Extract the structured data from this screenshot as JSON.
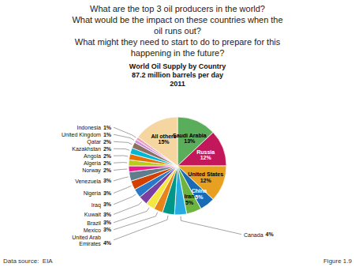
{
  "chart_data": {
    "type": "pie",
    "title": "World Oil Supply by Country\n87.2 million barrels per day\n2011",
    "annotations": [
      "What are the top 3 oil producers in the world?\nWhat would be the impact on these countries when the\noil runs out?\nWhat might they need to start to do to prepare for this\nhappening in the future?",
      "Data source:  EIA",
      "Figure 1.9"
    ],
    "categories": [
      "Saudi Arabia",
      "Russia",
      "United States",
      "China",
      "Iran",
      "Canada",
      "United Arab\nEmirates",
      "Mexico",
      "Brazil",
      "Kuwait",
      "Iraq",
      "Nigeria",
      "Venezuela",
      "Norway",
      "Algeria",
      "Angola",
      "Kazakhstan",
      "Qatar",
      "United Kingdom",
      "Indonesia",
      "All others"
    ],
    "values": [
      13,
      12,
      12,
      5,
      5,
      4,
      4,
      3,
      3,
      3,
      3,
      3,
      3,
      2,
      2,
      2,
      2,
      2,
      1,
      1,
      15
    ],
    "value_labels": [
      "13%",
      "12%",
      "12%",
      "5%",
      "5%",
      "4%",
      "4%",
      "3%",
      "3%",
      "3%",
      "3%",
      "3%",
      "3%",
      "2%",
      "2%",
      "2%",
      "2%",
      "2%",
      "1%",
      "1%",
      "15%"
    ],
    "colors": [
      "#5aad5a",
      "#c2185b",
      "#e8a020",
      "#1a6bb5",
      "#6db33f",
      "#29abe2",
      "#009688",
      "#e8841a",
      "#f5e642",
      "#7b3fa0",
      "#2979c8",
      "#d44000",
      "#607d8b",
      "#e91e8c",
      "#b8cc20",
      "#e87000",
      "#00b8d4",
      "#8d6e63",
      "#c890d8",
      "#f0a0bc",
      "#f5d6a0"
    ],
    "data_labels": true
  }
}
